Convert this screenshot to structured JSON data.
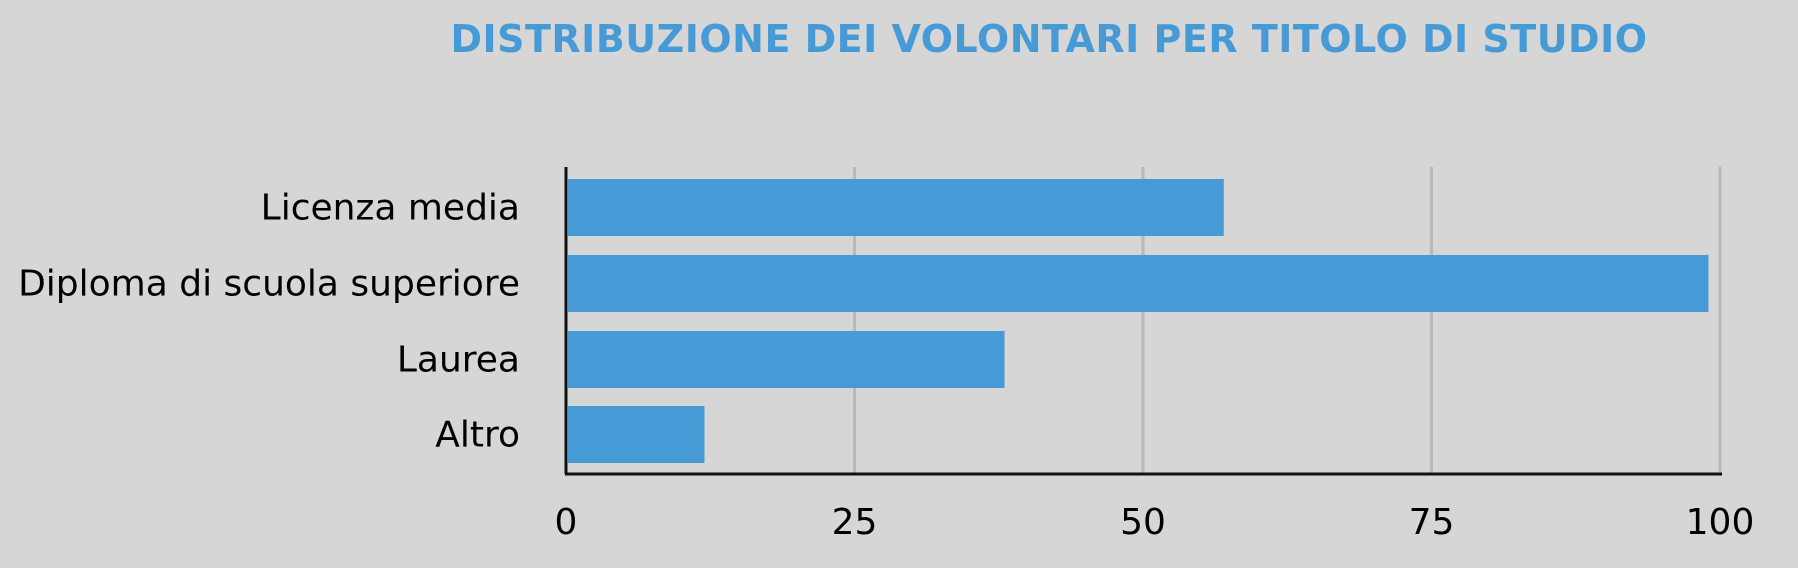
{
  "chart_data": {
    "type": "bar",
    "orientation": "horizontal",
    "title": "DISTRIBUZIONE DEI VOLONTARI PER TITOLO DI STUDIO",
    "categories": [
      "Licenza media",
      "Diploma di scuola superiore",
      "Laurea",
      "Altro"
    ],
    "values": [
      57,
      99,
      38,
      12
    ],
    "xlim": [
      0,
      100
    ],
    "xticks": [
      "0",
      "25",
      "50",
      "75",
      "100"
    ],
    "xlabel": "",
    "ylabel": "",
    "grid": true,
    "legend": "none",
    "colors": {
      "bar": "#469bd7",
      "title": "#469bd7",
      "grid": "#b8b8b8",
      "axis": "#111111",
      "background": "#d6d6d6"
    }
  }
}
